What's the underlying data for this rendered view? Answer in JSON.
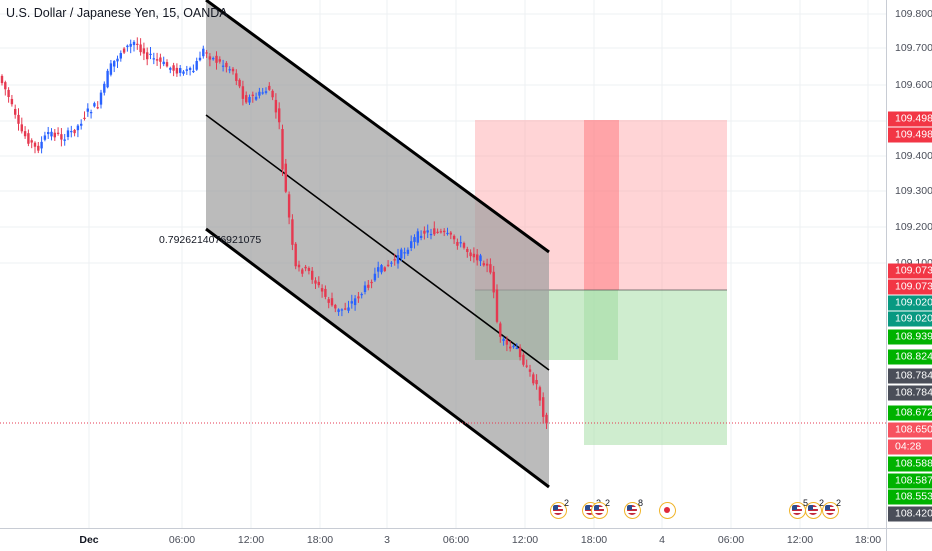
{
  "symbol": {
    "title": "U.S. Dollar / Japanese Yen, 15, OANDA"
  },
  "colors": {
    "up_candle": "#2962ff",
    "down_candle": "#e53950",
    "channel_fill": "#9e9e9e",
    "risk_zone": "#ff9fa3",
    "reward_zone": "#9fdb9f",
    "current_price_line": "#e53950"
  },
  "drawing": {
    "fib_value_label": "0.7926214076921075"
  },
  "price_axis": {
    "ticks": [
      "109.800",
      "109.700",
      "109.600",
      "109.500",
      "109.400",
      "109.300",
      "109.200",
      "109.100"
    ],
    "labels": [
      {
        "text": "109.498",
        "color": "#f23645"
      },
      {
        "text": "109.498",
        "color": "#f23645"
      },
      {
        "text": "109.073",
        "color": "#f23645"
      },
      {
        "text": "109.073",
        "color": "#f23645"
      },
      {
        "text": "109.020",
        "color": "#089981"
      },
      {
        "text": "109.020",
        "color": "#089981"
      },
      {
        "text": "108.939",
        "color": "#00b200"
      },
      {
        "text": "108.824",
        "color": "#00b200"
      },
      {
        "text": "108.784",
        "color": "#4a4e59"
      },
      {
        "text": "108.784",
        "color": "#4a4e59"
      },
      {
        "text": "108.672",
        "color": "#00b200"
      },
      {
        "text": "108.650",
        "color": "#f7525f"
      },
      {
        "text": "04:28",
        "color": "#f7525f"
      },
      {
        "text": "108.588",
        "color": "#00b200"
      },
      {
        "text": "108.587",
        "color": "#00b200"
      },
      {
        "text": "108.553",
        "color": "#00b200"
      },
      {
        "text": "108.420",
        "color": "#4a4e59"
      }
    ]
  },
  "time_axis": {
    "ticks": [
      {
        "text": "Dec",
        "bold": true
      },
      {
        "text": "06:00",
        "bold": false
      },
      {
        "text": "12:00",
        "bold": false
      },
      {
        "text": "18:00",
        "bold": false
      },
      {
        "text": "3",
        "bold": false
      },
      {
        "text": "06:00",
        "bold": false
      },
      {
        "text": "12:00",
        "bold": false
      },
      {
        "text": "18:00",
        "bold": false
      },
      {
        "text": "4",
        "bold": false
      },
      {
        "text": "06:00",
        "bold": false
      },
      {
        "text": "12:00",
        "bold": false
      },
      {
        "text": "18:00",
        "bold": false
      }
    ]
  },
  "events": [
    {
      "icon": "us-flag-icon",
      "count": "2"
    },
    {
      "icon": "us-flag-icon",
      "count": "2"
    },
    {
      "icon": "us-flag-icon",
      "count": "2"
    },
    {
      "icon": "us-flag-icon",
      "count": "8"
    },
    {
      "icon": "red-dot-icon",
      "count": ""
    },
    {
      "icon": "us-flag-icon",
      "count": "5"
    },
    {
      "icon": "us-flag-icon",
      "count": "2"
    },
    {
      "icon": "us-flag-icon",
      "count": "2"
    }
  ]
}
